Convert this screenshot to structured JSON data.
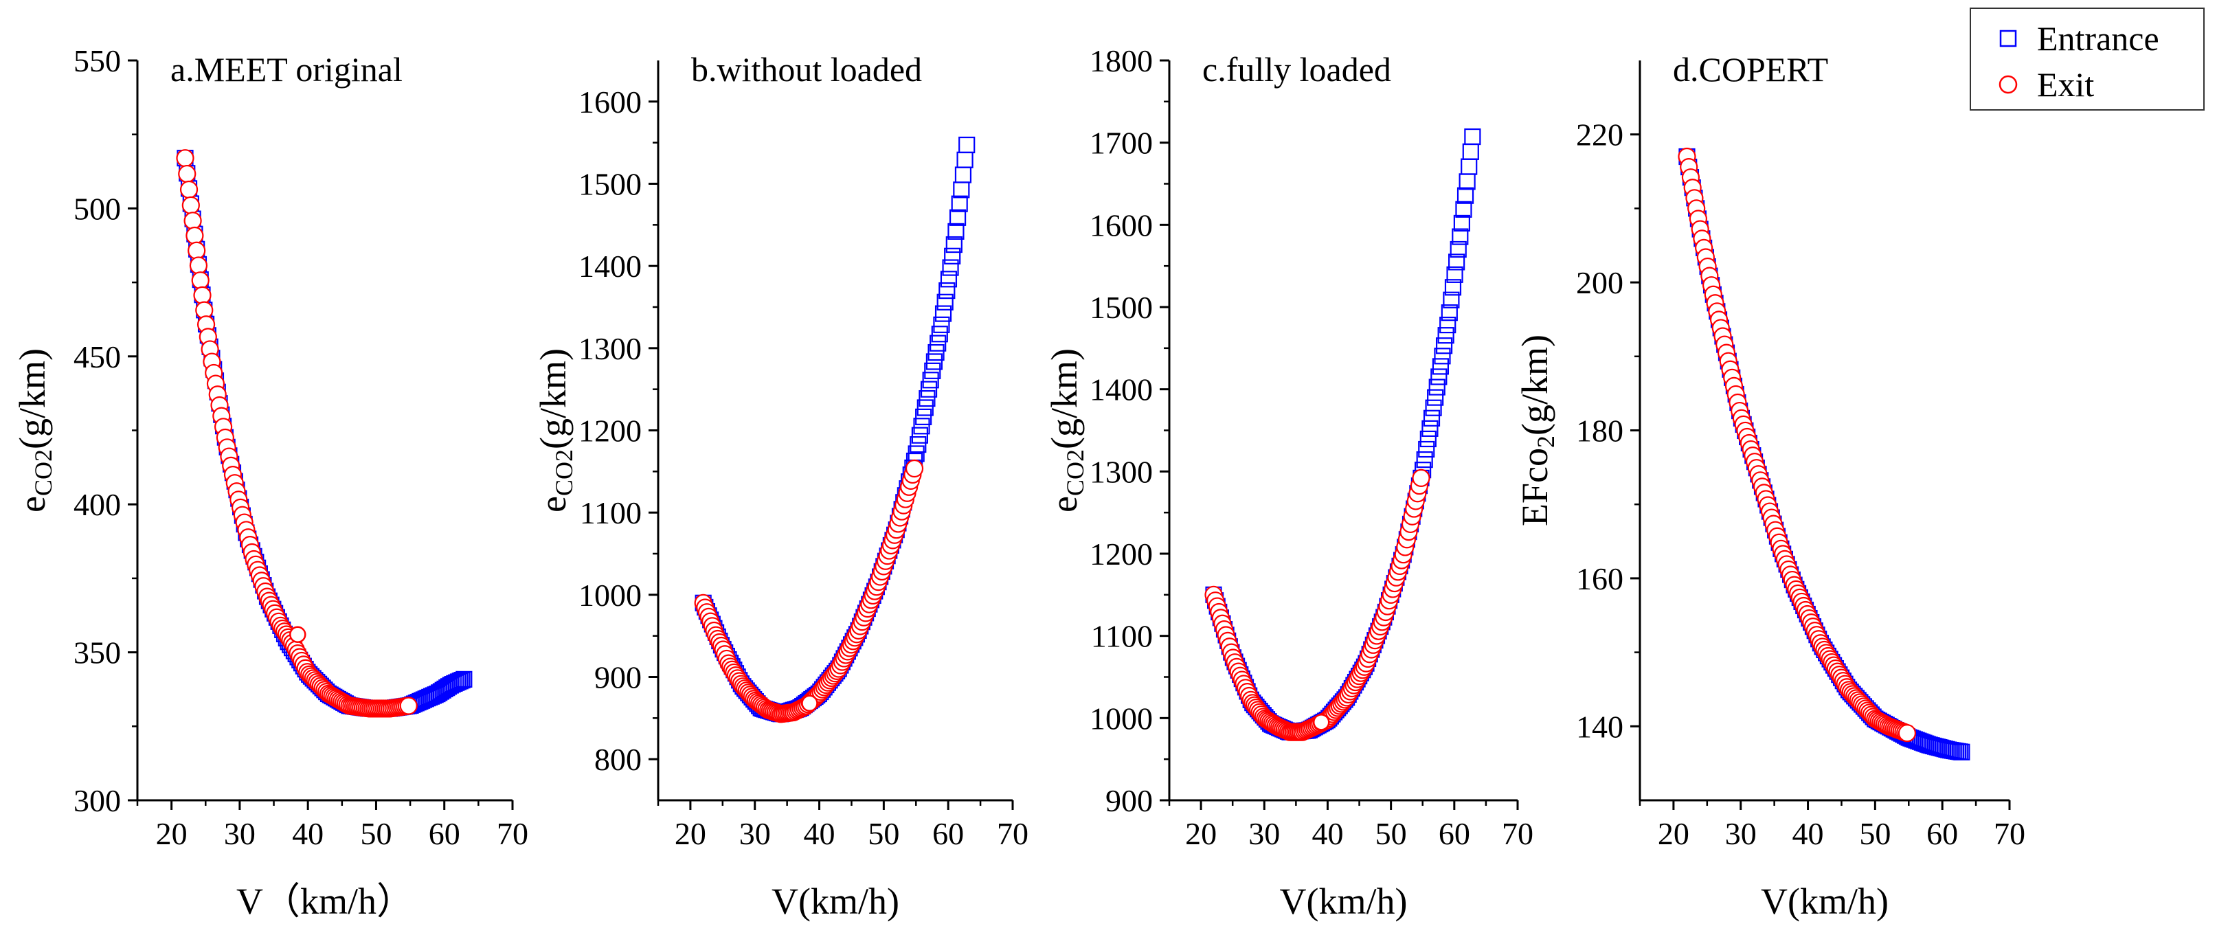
{
  "legend": {
    "items": [
      {
        "label": "Entrance",
        "marker": "square",
        "color": "#0000ff"
      },
      {
        "label": "Exit",
        "marker": "circle",
        "color": "#ff0000"
      }
    ]
  },
  "chart_data": [
    {
      "type": "scatter",
      "title": "a.MEET original",
      "xlabel": "V（km/h）",
      "ylabel": "e_CO2(g/km)",
      "xlim": [
        15,
        70
      ],
      "ylim": [
        300,
        550
      ],
      "xticks": [
        20,
        30,
        40,
        50,
        60,
        70
      ],
      "yticks": [
        300,
        350,
        400,
        450,
        500,
        550
      ],
      "series": [
        {
          "name": "Entrance",
          "marker": "square",
          "color": "#0000ff",
          "x_range": [
            22,
            63
          ],
          "x": [
            22,
            25,
            28,
            31,
            34,
            37,
            40,
            43,
            46,
            49,
            52,
            55,
            57,
            59,
            61,
            62,
            63
          ],
          "y": [
            517,
            462,
            421,
            390,
            369,
            354,
            343,
            336,
            332,
            331,
            331,
            332,
            334,
            336,
            339,
            340,
            341
          ]
        },
        {
          "name": "Exit",
          "marker": "circle",
          "color": "#ff0000",
          "x_range": [
            22,
            55
          ],
          "x": [
            22,
            23,
            24,
            25,
            26,
            27,
            28,
            29,
            30,
            32,
            34,
            36,
            38,
            40,
            43,
            46,
            49,
            52,
            55
          ],
          "y": [
            517,
            498,
            480,
            462,
            447,
            434,
            421,
            410,
            400,
            382,
            369,
            359,
            352,
            343,
            336,
            332,
            331,
            331,
            332
          ]
        }
      ],
      "highlight": {
        "x": 38.5,
        "y": 356
      }
    },
    {
      "type": "scatter",
      "title": "b.without loaded",
      "xlabel": "V(km/h)",
      "ylabel": "e_CO2(g/km)",
      "xlim": [
        15,
        70
      ],
      "ylim": [
        750,
        1650
      ],
      "xticks": [
        20,
        30,
        40,
        50,
        60,
        70
      ],
      "yticks": [
        800,
        900,
        1000,
        1100,
        1200,
        1300,
        1400,
        1500,
        1600
      ],
      "series": [
        {
          "name": "Entrance",
          "marker": "square",
          "color": "#0000ff",
          "x_range": [
            22,
            63
          ],
          "x": [
            22,
            25,
            28,
            31,
            34,
            37,
            40,
            43,
            46,
            49,
            52,
            55,
            57,
            59,
            61,
            62,
            63
          ],
          "y": [
            990,
            935,
            890,
            862,
            855,
            862,
            880,
            910,
            955,
            1012,
            1080,
            1170,
            1250,
            1330,
            1430,
            1490,
            1555
          ]
        },
        {
          "name": "Exit",
          "marker": "circle",
          "color": "#ff0000",
          "x_range": [
            22,
            55
          ],
          "x": [
            22,
            23,
            24,
            25,
            26,
            28,
            30,
            32,
            34,
            36,
            38,
            40,
            43,
            46,
            49,
            52,
            55
          ],
          "y": [
            990,
            970,
            950,
            935,
            915,
            890,
            872,
            860,
            855,
            857,
            865,
            880,
            910,
            955,
            1012,
            1080,
            1160
          ]
        }
      ],
      "highlight": {
        "x": 38.5,
        "y": 868
      }
    },
    {
      "type": "scatter",
      "title": "c.fully loaded",
      "xlabel": "V(km/h)",
      "ylabel": "e_CO2(g/km)",
      "xlim": [
        15,
        70
      ],
      "ylim": [
        900,
        1800
      ],
      "xticks": [
        20,
        30,
        40,
        50,
        60,
        70
      ],
      "yticks": [
        900,
        1000,
        1100,
        1200,
        1300,
        1400,
        1500,
        1600,
        1700,
        1800
      ],
      "series": [
        {
          "name": "Entrance",
          "marker": "square",
          "color": "#0000ff",
          "x_range": [
            22,
            63
          ],
          "x": [
            22,
            25,
            28,
            31,
            34,
            37,
            40,
            43,
            46,
            49,
            52,
            55,
            57,
            59,
            61,
            62,
            63
          ],
          "y": [
            1150,
            1075,
            1020,
            993,
            983,
            985,
            998,
            1025,
            1065,
            1125,
            1200,
            1300,
            1390,
            1480,
            1590,
            1650,
            1715
          ]
        },
        {
          "name": "Exit",
          "marker": "circle",
          "color": "#ff0000",
          "x_range": [
            22,
            55
          ],
          "x": [
            22,
            23,
            24,
            25,
            26,
            28,
            30,
            32,
            34,
            36,
            38,
            40,
            43,
            46,
            49,
            52,
            55
          ],
          "y": [
            1150,
            1125,
            1100,
            1075,
            1055,
            1020,
            1000,
            990,
            983,
            983,
            990,
            998,
            1025,
            1065,
            1125,
            1200,
            1300
          ]
        }
      ],
      "highlight": {
        "x": 39,
        "y": 995
      }
    },
    {
      "type": "scatter",
      "title": "d.COPERT",
      "xlabel": "V(km/h)",
      "ylabel": "EFco_2(g/km)",
      "xlim": [
        15,
        70
      ],
      "ylim": [
        130,
        230
      ],
      "xticks": [
        20,
        30,
        40,
        50,
        60,
        70
      ],
      "yticks": [
        140,
        160,
        180,
        200,
        220
      ],
      "series": [
        {
          "name": "Entrance",
          "marker": "square",
          "color": "#0000ff",
          "x_range": [
            22,
            63
          ],
          "x": [
            22,
            24,
            26,
            28,
            30,
            32,
            34,
            36,
            38,
            40,
            42,
            44,
            46,
            48,
            50,
            52,
            55,
            58,
            61,
            63
          ],
          "y": [
            217,
            207,
            198,
            190,
            182,
            176,
            170,
            164,
            159,
            155,
            151,
            148,
            145,
            143,
            141,
            140,
            138.5,
            137.5,
            136.8,
            136.5
          ]
        },
        {
          "name": "Exit",
          "marker": "circle",
          "color": "#ff0000",
          "x_range": [
            22,
            55
          ],
          "x": [
            22,
            24,
            26,
            28,
            30,
            32,
            34,
            36,
            38,
            40,
            42,
            44,
            46,
            48,
            50,
            52,
            55
          ],
          "y": [
            217,
            207,
            198,
            190,
            182,
            176,
            170,
            164,
            159,
            155,
            151,
            148,
            145,
            143,
            141,
            140,
            139
          ]
        }
      ]
    }
  ]
}
